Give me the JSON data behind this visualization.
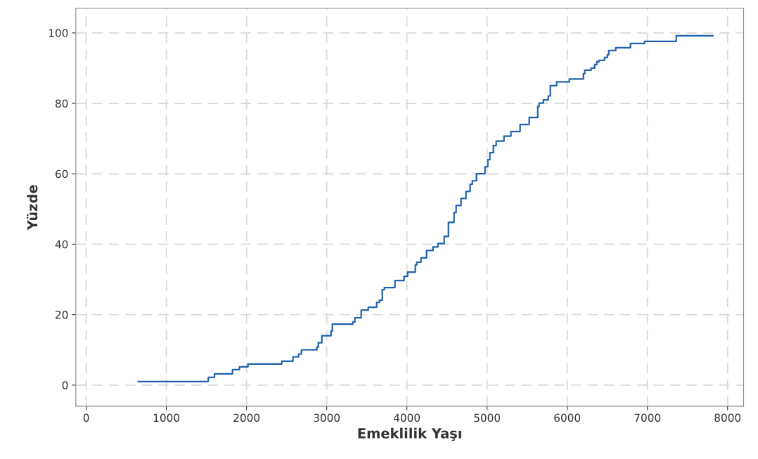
{
  "chart_data": {
    "type": "step",
    "xlabel": "Emeklilik Yaşı",
    "ylabel": "Yüzde",
    "xlim": [
      -130,
      8200
    ],
    "ylim": [
      -6,
      107
    ],
    "xticks": [
      0,
      1000,
      2000,
      3000,
      4000,
      5000,
      6000,
      7000,
      8000
    ],
    "yticks": [
      0,
      20,
      40,
      60,
      80,
      100
    ],
    "grid": true,
    "line_style": "solid",
    "marker": "none",
    "series": [
      {
        "color": "#1f62ad",
        "x": [
          650,
          1523,
          1600,
          1825,
          1912,
          2018,
          2439,
          2579,
          2649,
          2684,
          2877,
          2895,
          2939,
          3053,
          3070,
          3325,
          3351,
          3430,
          3518,
          3623,
          3658,
          3693,
          3719,
          3851,
          3965,
          4009,
          4105,
          4123,
          4175,
          4246,
          4325,
          4386,
          4465,
          4518,
          4588,
          4614,
          4675,
          4737,
          4789,
          4816,
          4868,
          4974,
          5009,
          5035,
          5079,
          5114,
          5211,
          5298,
          5412,
          5526,
          5632,
          5649,
          5702,
          5763,
          5789,
          5868,
          6026,
          6202,
          6219,
          6298,
          6342,
          6368,
          6395,
          6465,
          6500,
          6518,
          6605,
          6789,
          6965,
          7360,
          7816
        ],
        "values": [
          1,
          2.2,
          3.2,
          4.4,
          5.2,
          6,
          6.8,
          8,
          8.8,
          10,
          10.8,
          12,
          14,
          15.3,
          17.3,
          17.9,
          19.1,
          21.3,
          22.1,
          23.5,
          24.1,
          27.1,
          27.7,
          29.7,
          30.9,
          32.1,
          34.1,
          34.9,
          36.1,
          38.2,
          39.2,
          40.2,
          42.2,
          46.2,
          49,
          51,
          53,
          55,
          57,
          58,
          60,
          62,
          64,
          66,
          68,
          69.3,
          70.7,
          72,
          74,
          76,
          79.1,
          80.1,
          81,
          82.1,
          85,
          86.1,
          86.9,
          88.4,
          89.4,
          90,
          91,
          91.8,
          92.2,
          93,
          93.8,
          95,
          95.8,
          97,
          97.6,
          99.2,
          99.2
        ]
      }
    ]
  }
}
